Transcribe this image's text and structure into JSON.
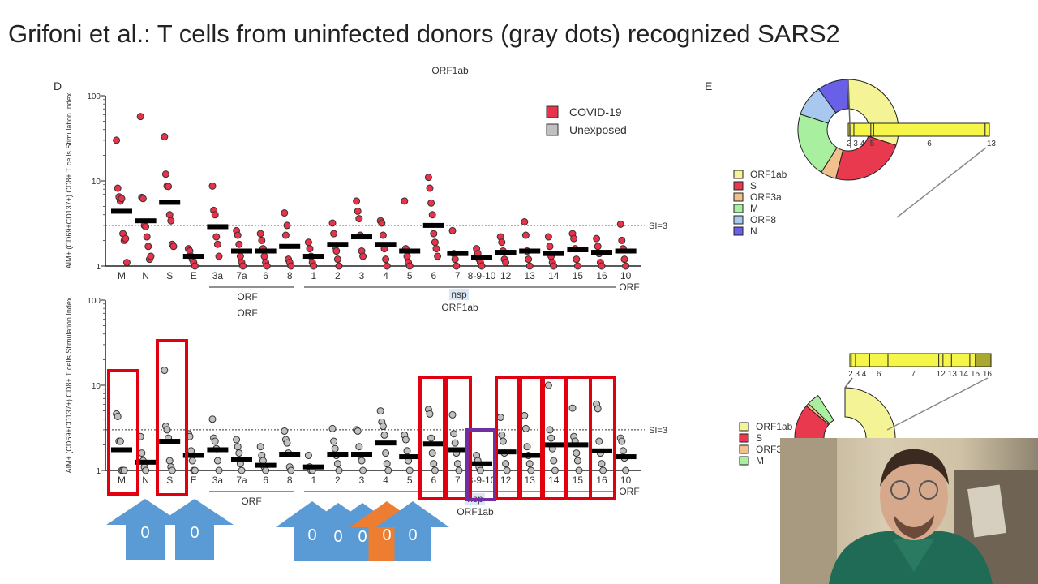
{
  "slide": {
    "title": "Grifoni et al.: T cells from uninfected donors (gray dots) recognized SARS2"
  },
  "panel_d": {
    "label": "D",
    "top_header": "ORF1ab"
  },
  "panel_e": {
    "label": "E"
  },
  "annotations": {
    "arrow_labels": [
      "0",
      "0",
      "0",
      "0",
      "0",
      "0",
      "0"
    ],
    "arrow_colors": [
      "#5b9bd5",
      "#5b9bd5",
      "#5b9bd5",
      "#5b9bd5",
      "#5b9bd5",
      "#ed7d31",
      "#5b9bd5"
    ],
    "box_color": "#e00010",
    "highlight_color": "#7030a0"
  },
  "chart_data": [
    {
      "type": "scatter",
      "title": "",
      "ylabel": "AIM+ (CD69+CD137+) CD8+ T cells Stimulation Index",
      "yscale": "log",
      "ylim": [
        1,
        100
      ],
      "yticks": [
        "1",
        "10",
        "100"
      ],
      "threshold": {
        "value": 3,
        "label": "SI=3"
      },
      "legend": {
        "placement": "top-right",
        "entries": [
          {
            "name": "COVID-19",
            "color": "#e8334a"
          },
          {
            "name": "Unexposed",
            "color": "#c0c0c0"
          }
        ]
      },
      "group_labels": {
        "orf": "ORF",
        "nsp": "nsp",
        "orf1ab": "ORF1ab",
        "orf_right": "ORF"
      },
      "categories": [
        "M",
        "N",
        "S",
        "E",
        "3a",
        "7a",
        "6",
        "8",
        "1",
        "2",
        "3",
        "4",
        "5",
        "6",
        "7",
        "8-9-10",
        "12",
        "13",
        "14",
        "15",
        "16",
        "10"
      ],
      "series": [
        {
          "name": "COVID-19",
          "color": "#e8334a",
          "medians": [
            4.4,
            3.4,
            5.6,
            1.3,
            2.9,
            1.5,
            1.5,
            1.7,
            1.3,
            1.8,
            2.2,
            1.8,
            1.5,
            3.0,
            1.4,
            1.25,
            1.45,
            1.5,
            1.4,
            1.55,
            1.45,
            1.5
          ],
          "points": [
            [
              30,
              8.2,
              6.5,
              5.8,
              6.2,
              2.4,
              2,
              2.1,
              1.1
            ],
            [
              57,
              6.4,
              6.2,
              3,
              2.9,
              2.2,
              1.7,
              1.2,
              1.3
            ],
            [
              33,
              12,
              8.7,
              8.6,
              4,
              3.4,
              1.8,
              1.7
            ],
            [
              1.6,
              1.5,
              1.3,
              1.2,
              1.1,
              1
            ],
            [
              8.7,
              4.5,
              4,
              2.2,
              1.8,
              1.3
            ],
            [
              2.6,
              2.3,
              1.8,
              1.3,
              1.1,
              1
            ],
            [
              2.4,
              2,
              1.6,
              1.3,
              1.1,
              1
            ],
            [
              4.2,
              2.3,
              3,
              1.2,
              1.1,
              1
            ],
            [
              1.9,
              1.6,
              1.3,
              1.1,
              1
            ],
            [
              3.2,
              2.4,
              1.7,
              1.5,
              1.2,
              1
            ],
            [
              5.8,
              4.4,
              3.6,
              2.3,
              1.5,
              1.3
            ],
            [
              3.4,
              3.2,
              2.3,
              1.6,
              1.2,
              1
            ],
            [
              5.8,
              1.6,
              1.3,
              1.1,
              1
            ],
            [
              11,
              8.2,
              5.5,
              4,
              2.4,
              1.9,
              1.6,
              1.3
            ],
            [
              2.6,
              1.4,
              1.2,
              1
            ],
            [
              1.6,
              1.4,
              1.2,
              1.1,
              1
            ],
            [
              2.2,
              1.9,
              1.5,
              1.2,
              1.1
            ],
            [
              3.3,
              2.3,
              1.5,
              1.2,
              1
            ],
            [
              2.2,
              1.7,
              1.3,
              1.1,
              1
            ],
            [
              2.4,
              2.1,
              1.6,
              1.2,
              1
            ],
            [
              2.1,
              1.7,
              1.4,
              1.1,
              1
            ],
            [
              3.1,
              2,
              1.6,
              1.2,
              1
            ]
          ]
        }
      ]
    },
    {
      "type": "scatter",
      "title": "",
      "ylabel": "AIM+ (CD69+CD137+) CD8+ T cells Stimulation Index",
      "yscale": "log",
      "ylim": [
        1,
        100
      ],
      "yticks": [
        "1",
        "10",
        "100"
      ],
      "threshold": {
        "value": 3,
        "label": "SI=3"
      },
      "group_labels": {
        "orf_top": "ORF",
        "orf": "ORF",
        "nsp": "nsp",
        "orf1ab": "ORF1ab",
        "orf_right": "ORF"
      },
      "categories": [
        "M",
        "N",
        "S",
        "E",
        "3a",
        "7a",
        "6",
        "8",
        "1",
        "2",
        "3",
        "4",
        "5",
        "6",
        "7",
        "8-9-10",
        "12",
        "13",
        "14",
        "15",
        "16",
        "10"
      ],
      "highlighted_categories": [
        "M",
        "S",
        "6",
        "7",
        "12",
        "13",
        "14",
        "15",
        "16"
      ],
      "purple_highlight": [
        "8-9-10"
      ],
      "series": [
        {
          "name": "Unexposed",
          "color": "#c0c0c0",
          "medians": [
            1.75,
            1.25,
            2.2,
            1.5,
            1.75,
            1.35,
            1.15,
            1.55,
            1.1,
            1.55,
            1.55,
            2.1,
            1.45,
            2.05,
            1.75,
            1.2,
            1.65,
            1.5,
            2.0,
            2.0,
            1.7,
            1.45
          ],
          "points": [
            [
              4.6,
              4.3,
              2.2,
              2.2,
              1,
              1,
              1
            ],
            [
              2.5,
              1.6,
              1.3,
              1.1,
              1
            ],
            [
              15,
              3.3,
              3,
              2.4,
              1.3,
              1.1,
              1
            ],
            [
              2.7,
              2.5,
              1.7,
              1.3,
              1,
              1
            ],
            [
              4,
              2.4,
              2.2,
              1.8,
              1.3,
              1
            ],
            [
              2.3,
              1.9,
              1.6,
              1.2,
              1
            ],
            [
              1.9,
              1.5,
              1.3,
              1.1,
              1
            ],
            [
              2.9,
              2.3,
              2.1,
              1.6,
              1.1,
              1
            ],
            [
              1.5,
              1.1,
              1,
              1
            ],
            [
              3.1,
              2.2,
              1.8,
              1.5,
              1.2,
              1
            ],
            [
              3,
              2.9,
              1.9,
              1.5,
              1.3,
              1
            ],
            [
              5,
              3.7,
              3.3,
              2.6,
              1.6,
              1.2,
              1
            ],
            [
              2.6,
              2.3,
              1.7,
              1.3,
              1
            ],
            [
              5.2,
              4.6,
              2.4,
              1.6,
              1.2,
              1
            ],
            [
              4.5,
              2.7,
              2.1,
              1.6,
              1.2,
              1
            ],
            [
              1.5,
              1.3,
              1.1,
              1
            ],
            [
              4.2,
              2.6,
              2.2,
              1.6,
              1.2,
              1
            ],
            [
              4.4,
              3.1,
              1.9,
              1.5,
              1.2,
              1
            ],
            [
              10,
              3,
              2.4,
              1.8,
              1.3,
              1
            ],
            [
              5.4,
              2.5,
              2.2,
              1.6,
              1.3,
              1
            ],
            [
              6,
              5.3,
              2.2,
              1.6,
              1.2,
              1
            ],
            [
              2.4,
              2.2,
              1.7,
              1.4,
              1
            ]
          ]
        }
      ]
    },
    {
      "type": "pie",
      "variant": "donut",
      "legend": [
        "ORF1ab",
        "S",
        "ORF3a",
        "M",
        "ORF8",
        "N"
      ],
      "colors": [
        "#f4f497",
        "#e8394f",
        "#f2c08d",
        "#a8f0a0",
        "#a8c8f0",
        "#6a60e8"
      ],
      "values": [
        0.3,
        0.24,
        0.05,
        0.21,
        0.1,
        0.1
      ],
      "genome_bar": {
        "labels": [
          "2",
          "3",
          "4",
          "5",
          "6",
          "13"
        ],
        "fractions": [
          0.01,
          0.04,
          0.16,
          0.18,
          0.97,
          1.0
        ]
      }
    },
    {
      "type": "pie",
      "variant": "donut",
      "legend": [
        "ORF1ab",
        "S",
        "ORF3a",
        "M"
      ],
      "colors": [
        "#f4f497",
        "#e8394f",
        "#f2c08d",
        "#a8f0a0"
      ],
      "values": [
        0.62,
        0.24,
        0.01,
        0.04
      ],
      "genome_bar": {
        "labels": [
          "2",
          "3",
          "4",
          "6",
          "7",
          "12",
          "13",
          "14",
          "15",
          "16"
        ],
        "fractions": [
          0.01,
          0.04,
          0.14,
          0.27,
          0.63,
          0.66,
          0.72,
          0.85,
          0.89,
          1.0
        ]
      }
    }
  ]
}
